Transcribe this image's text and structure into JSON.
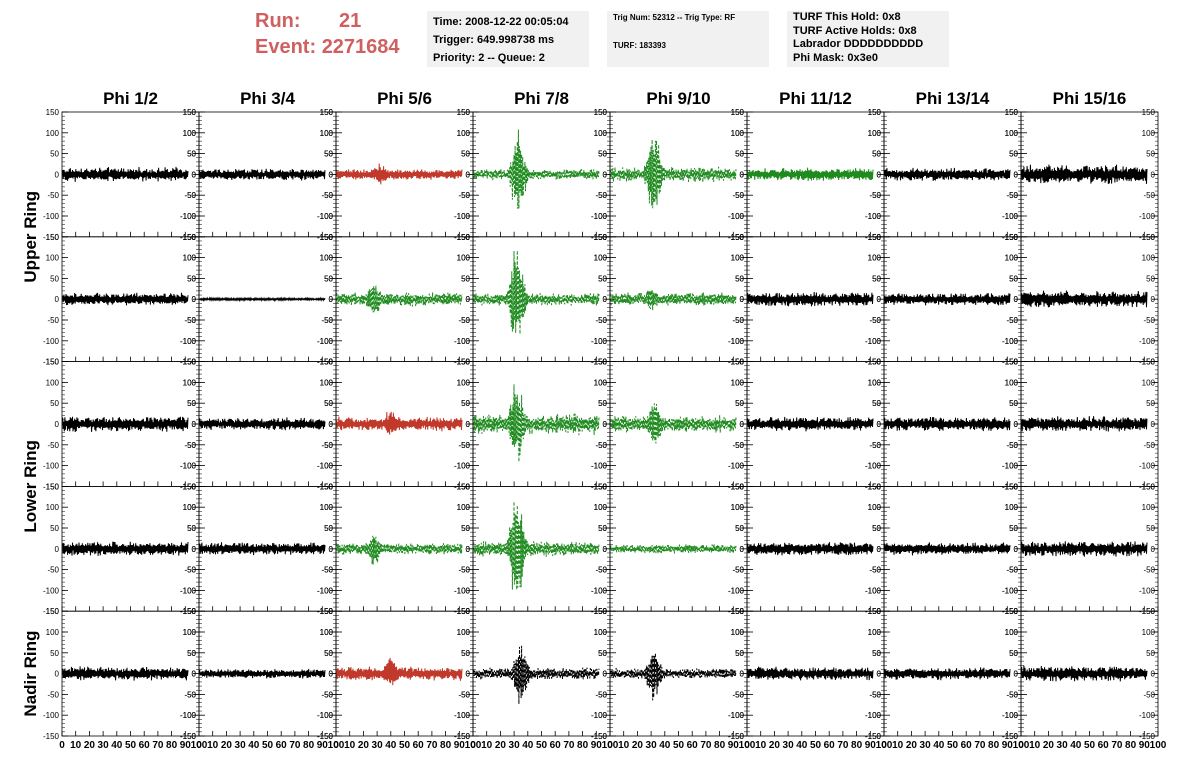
{
  "header": {
    "run_label": "Run:",
    "run_value": "21",
    "event_label": "Event:",
    "event_value": "2271684",
    "info1": [
      "Time: 2008-12-22 00:05:04",
      "Trigger: 649.998738 ms",
      "Priority: 2 -- Queue: 2"
    ],
    "info2": [
      "Trig Num: 52312 -- Trig Type: RF",
      "TURF: 183393"
    ],
    "info3": [
      "TURF This Hold: 0x8",
      "TURF Active Holds: 0x8",
      "Labrador DDDDDDDDDD",
      "Phi Mask: 0x3e0"
    ]
  },
  "colors": {
    "header_text": "#d06060",
    "black_trace": "#000000",
    "red_trace": "#c0392b",
    "green_trace": "#1f8b1f"
  },
  "chart_data": {
    "type": "line",
    "columns": [
      "Phi 1/2",
      "Phi 3/4",
      "Phi 5/6",
      "Phi 7/8",
      "Phi 9/10",
      "Phi 11/12",
      "Phi 13/14",
      "Phi 15/16"
    ],
    "rows": [
      "Upper Ring",
      "Lower Ring",
      "Nadir Ring"
    ],
    "row_label_spans": [
      [
        0,
        2
      ],
      [
        2,
        4
      ],
      [
        4,
        5
      ]
    ],
    "xlim": [
      0,
      100
    ],
    "ylim": [
      -150,
      150
    ],
    "xticks": [
      0,
      10,
      20,
      30,
      40,
      50,
      60,
      70,
      80,
      90,
      100
    ],
    "xtick_labels": [
      "0",
      "10",
      "20",
      "30",
      "40",
      "50",
      "60",
      "70",
      "80",
      "90",
      "100"
    ],
    "yticks": [
      -150,
      -100,
      -50,
      0,
      50,
      100,
      150
    ],
    "ytick_labels": [
      "-150",
      "-100",
      "-50",
      "0",
      "50",
      "100",
      "150"
    ],
    "trace_end_x": 92,
    "panels": [
      [
        {
          "color": "black",
          "style": "solid",
          "amp": 18,
          "pulse_amp": 0,
          "pulse_x": 0
        },
        {
          "color": "black",
          "style": "solid",
          "amp": 15,
          "pulse_amp": 0,
          "pulse_x": 0
        },
        {
          "color": "red",
          "style": "solid",
          "amp": 14,
          "pulse_amp": 30,
          "pulse_x": 32
        },
        {
          "color": "green",
          "style": "dashed",
          "amp": 14,
          "pulse_amp": 115,
          "pulse_x": 33
        },
        {
          "color": "green",
          "style": "dashed",
          "amp": 20,
          "pulse_amp": 110,
          "pulse_x": 32
        },
        {
          "color": "green",
          "style": "solid",
          "amp": 16,
          "pulse_amp": 20,
          "pulse_x": 45
        },
        {
          "color": "black",
          "style": "solid",
          "amp": 16,
          "pulse_amp": 0,
          "pulse_x": 0
        },
        {
          "color": "black",
          "style": "solid",
          "amp": 24,
          "pulse_amp": 30,
          "pulse_x": 20
        }
      ],
      [
        {
          "color": "black",
          "style": "solid",
          "amp": 16,
          "pulse_amp": 0,
          "pulse_x": 0
        },
        {
          "color": "black",
          "style": "solid",
          "amp": 3,
          "pulse_amp": 0,
          "pulse_x": 0
        },
        {
          "color": "green",
          "style": "dashed",
          "amp": 18,
          "pulse_amp": 55,
          "pulse_x": 28
        },
        {
          "color": "green",
          "style": "dashed",
          "amp": 16,
          "pulse_amp": 140,
          "pulse_x": 32
        },
        {
          "color": "green",
          "style": "dashed",
          "amp": 18,
          "pulse_amp": 30,
          "pulse_x": 30
        },
        {
          "color": "black",
          "style": "solid",
          "amp": 18,
          "pulse_amp": 0,
          "pulse_x": 0
        },
        {
          "color": "black",
          "style": "solid",
          "amp": 16,
          "pulse_amp": 0,
          "pulse_x": 0
        },
        {
          "color": "black",
          "style": "solid",
          "amp": 22,
          "pulse_amp": 20,
          "pulse_x": 30
        }
      ],
      [
        {
          "color": "black",
          "style": "solid",
          "amp": 20,
          "pulse_amp": 0,
          "pulse_x": 0
        },
        {
          "color": "black",
          "style": "solid",
          "amp": 16,
          "pulse_amp": 0,
          "pulse_x": 0
        },
        {
          "color": "red",
          "style": "solid",
          "amp": 18,
          "pulse_amp": 40,
          "pulse_x": 40
        },
        {
          "color": "green",
          "style": "dashed",
          "amp": 28,
          "pulse_amp": 120,
          "pulse_x": 32
        },
        {
          "color": "green",
          "style": "dashed",
          "amp": 22,
          "pulse_amp": 70,
          "pulse_x": 33
        },
        {
          "color": "black",
          "style": "solid",
          "amp": 18,
          "pulse_amp": 0,
          "pulse_x": 0
        },
        {
          "color": "black",
          "style": "solid",
          "amp": 18,
          "pulse_amp": 0,
          "pulse_x": 0
        },
        {
          "color": "black",
          "style": "solid",
          "amp": 20,
          "pulse_amp": 0,
          "pulse_x": 0
        }
      ],
      [
        {
          "color": "black",
          "style": "solid",
          "amp": 18,
          "pulse_amp": 0,
          "pulse_x": 0
        },
        {
          "color": "black",
          "style": "solid",
          "amp": 16,
          "pulse_amp": 0,
          "pulse_x": 0
        },
        {
          "color": "green",
          "style": "dashed",
          "amp": 16,
          "pulse_amp": 45,
          "pulse_x": 28
        },
        {
          "color": "green",
          "style": "dashed",
          "amp": 20,
          "pulse_amp": 150,
          "pulse_x": 32
        },
        {
          "color": "green",
          "style": "dashed",
          "amp": 12,
          "pulse_amp": 15,
          "pulse_x": 35
        },
        {
          "color": "black",
          "style": "solid",
          "amp": 18,
          "pulse_amp": 0,
          "pulse_x": 0
        },
        {
          "color": "black",
          "style": "solid",
          "amp": 16,
          "pulse_amp": 0,
          "pulse_x": 0
        },
        {
          "color": "black",
          "style": "solid",
          "amp": 20,
          "pulse_amp": 0,
          "pulse_x": 0
        }
      ],
      [
        {
          "color": "black",
          "style": "solid",
          "amp": 18,
          "pulse_amp": 0,
          "pulse_x": 0
        },
        {
          "color": "black",
          "style": "solid",
          "amp": 12,
          "pulse_amp": 0,
          "pulse_x": 0
        },
        {
          "color": "red",
          "style": "solid",
          "amp": 18,
          "pulse_amp": 45,
          "pulse_x": 40
        },
        {
          "color": "black",
          "style": "dashed",
          "amp": 16,
          "pulse_amp": 85,
          "pulse_x": 35
        },
        {
          "color": "black",
          "style": "dashed",
          "amp": 14,
          "pulse_amp": 70,
          "pulse_x": 32
        },
        {
          "color": "black",
          "style": "solid",
          "amp": 18,
          "pulse_amp": 0,
          "pulse_x": 0
        },
        {
          "color": "black",
          "style": "solid",
          "amp": 16,
          "pulse_amp": 0,
          "pulse_x": 0
        },
        {
          "color": "black",
          "style": "solid",
          "amp": 20,
          "pulse_amp": 0,
          "pulse_x": 0
        }
      ]
    ]
  }
}
